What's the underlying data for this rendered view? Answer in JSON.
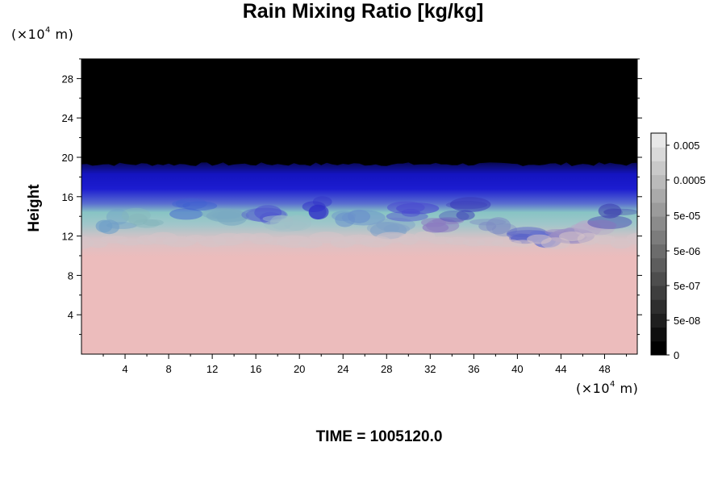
{
  "chart_data": {
    "type": "heatmap",
    "title": "Rain Mixing Ratio [kg/kg]",
    "ylabel": "Height",
    "y_unit": "(×10",
    "y_unit_exp": "4",
    "y_unit_tail": " m)",
    "x_unit": "(×10",
    "x_unit_exp": "4",
    "x_unit_tail": " m)",
    "xlim": [
      0,
      51
    ],
    "ylim": [
      0,
      30
    ],
    "x_ticks": [
      4,
      8,
      12,
      16,
      20,
      24,
      28,
      32,
      36,
      40,
      44,
      48
    ],
    "y_ticks": [
      4,
      8,
      12,
      16,
      20,
      24,
      28
    ],
    "colorbar_labels": [
      "0",
      "5e-08",
      "5e-07",
      "5e-06",
      "5e-05",
      "0.0005",
      "0.005"
    ],
    "colorbar_levels": 16,
    "bands": [
      {
        "name": "pink",
        "y_min": 0,
        "y_max": 11,
        "color": "#ecbcbc"
      },
      {
        "name": "transition",
        "y_min": 11,
        "y_max": 15,
        "color": "#8fc6c8"
      },
      {
        "name": "blue",
        "y_min": 15,
        "y_max": 19.5,
        "color": "#1818c8"
      },
      {
        "name": "black",
        "y_min": 19.5,
        "y_max": 30,
        "color": "#000000"
      }
    ]
  },
  "footer": {
    "time": "TIME = 1005120.0"
  }
}
